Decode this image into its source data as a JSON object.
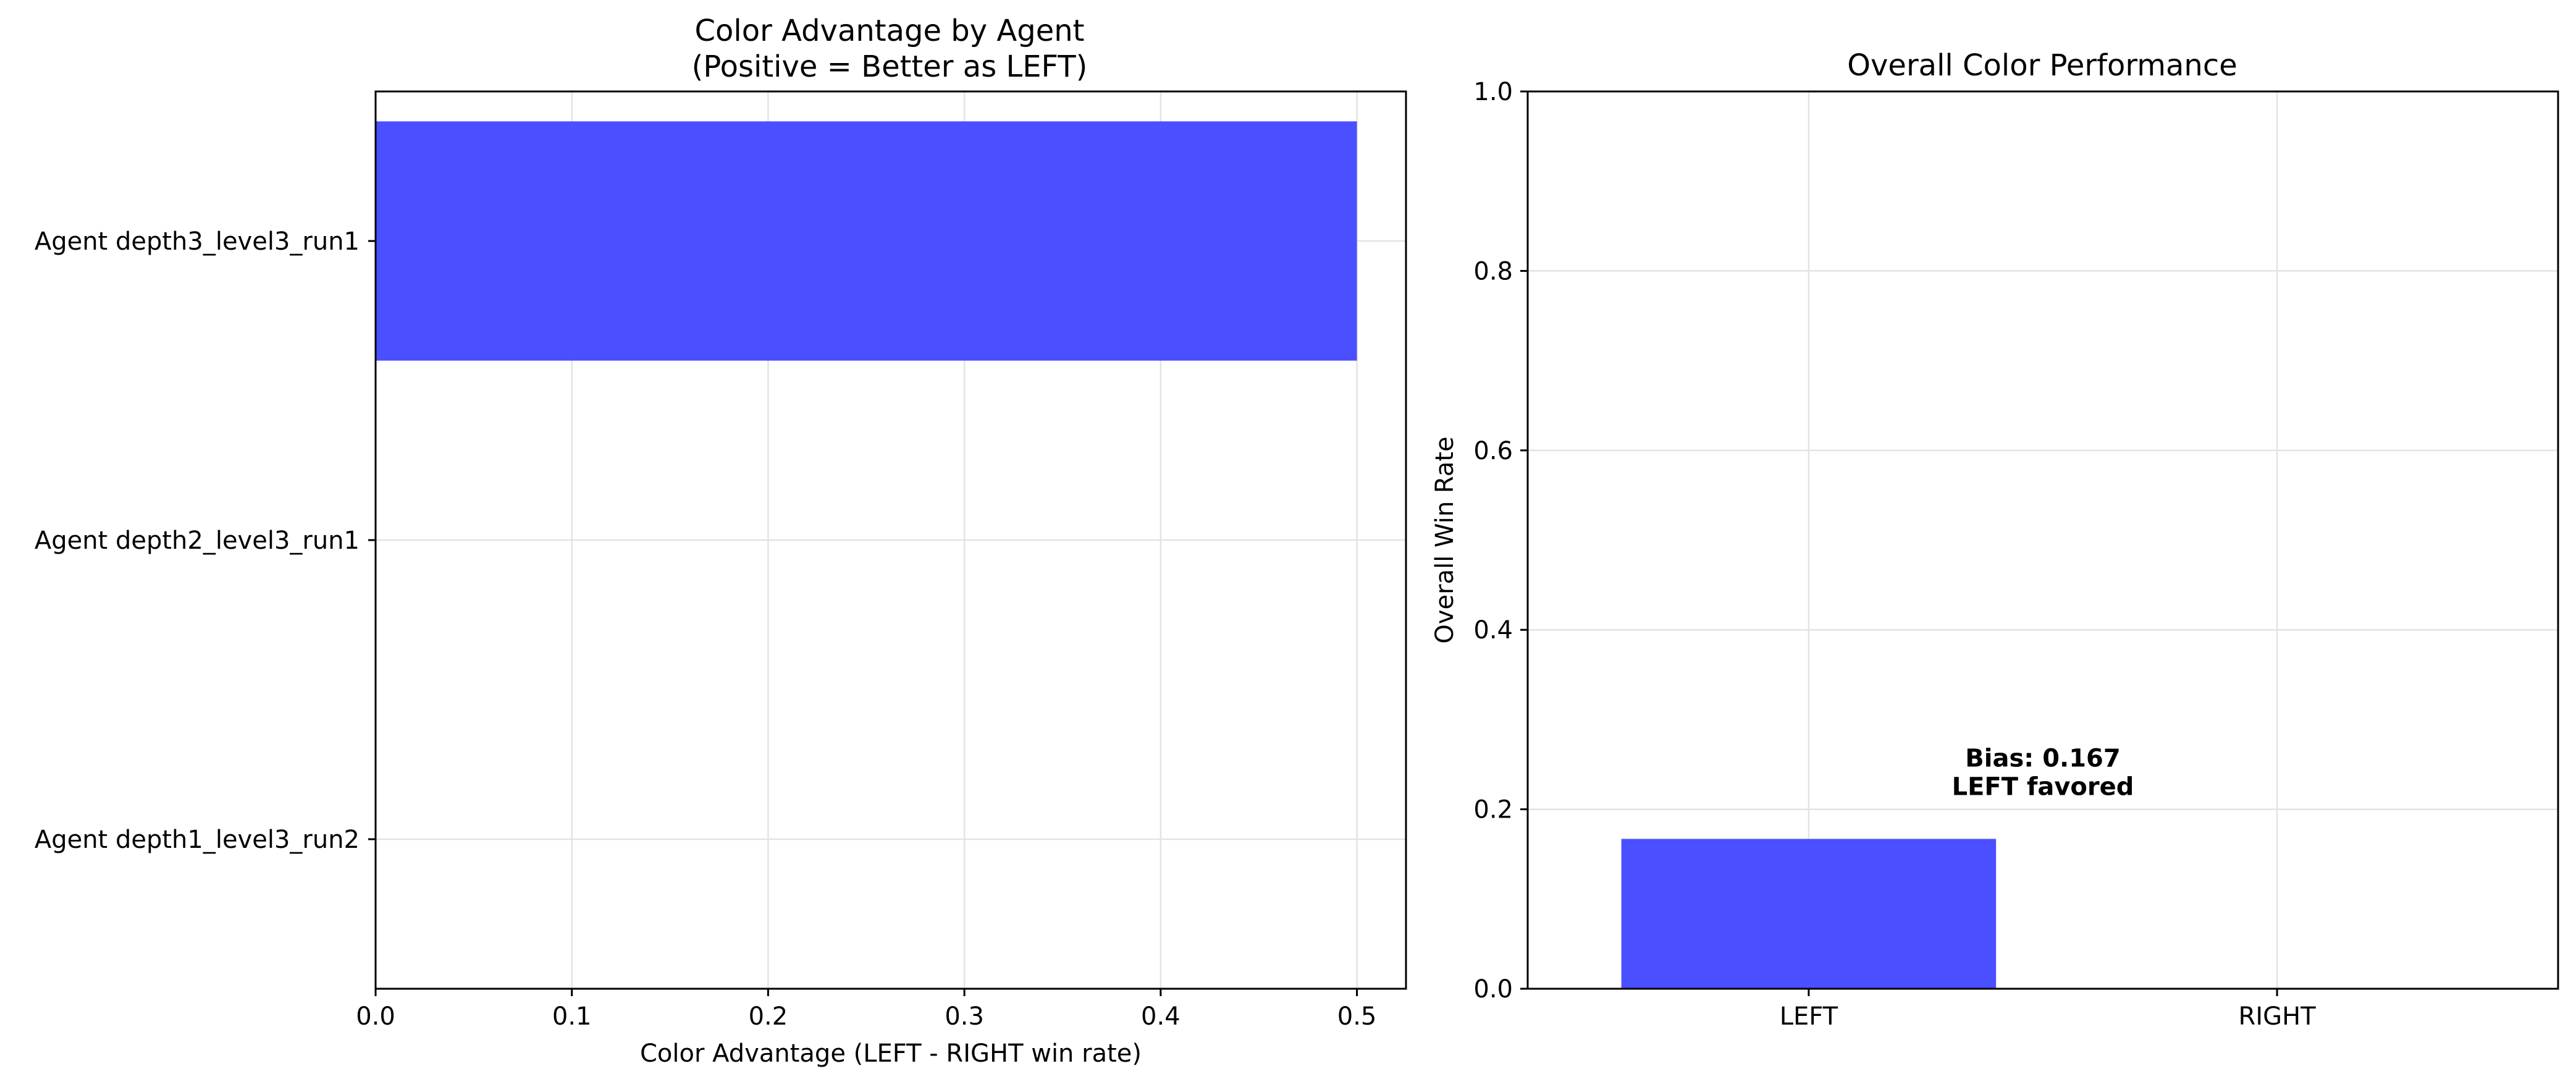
{
  "colors": {
    "bar": "#4a4fff",
    "grid": "#e3e3e3",
    "axis": "#000000"
  },
  "chart_data": [
    {
      "type": "bar",
      "orientation": "horizontal",
      "title": "Color Advantage by Agent",
      "subtitle": "(Positive = Better as LEFT)",
      "xlabel": "Color Advantage (LEFT - RIGHT win rate)",
      "ylabel": "",
      "categories": [
        "Agent depth3_level3_run1",
        "Agent depth2_level3_run1",
        "Agent depth1_level3_run2"
      ],
      "values": [
        0.5,
        0.0,
        0.0
      ],
      "xlim": [
        0.0,
        0.525
      ],
      "xticks": [
        "0.0",
        "0.1",
        "0.2",
        "0.3",
        "0.4",
        "0.5"
      ],
      "grid": true,
      "color": "#4a4fff"
    },
    {
      "type": "bar",
      "title": "Overall Color Performance",
      "xlabel": "",
      "ylabel": "Overall Win Rate",
      "categories": [
        "LEFT",
        "RIGHT"
      ],
      "values": [
        0.167,
        0.0
      ],
      "ylim": [
        0.0,
        1.0
      ],
      "yticks": [
        "0.0",
        "0.2",
        "0.4",
        "0.6",
        "0.8",
        "1.0"
      ],
      "grid": true,
      "color": "#4a4fff",
      "annotation": {
        "line1": "Bias: 0.167",
        "line2": "LEFT favored"
      }
    }
  ]
}
